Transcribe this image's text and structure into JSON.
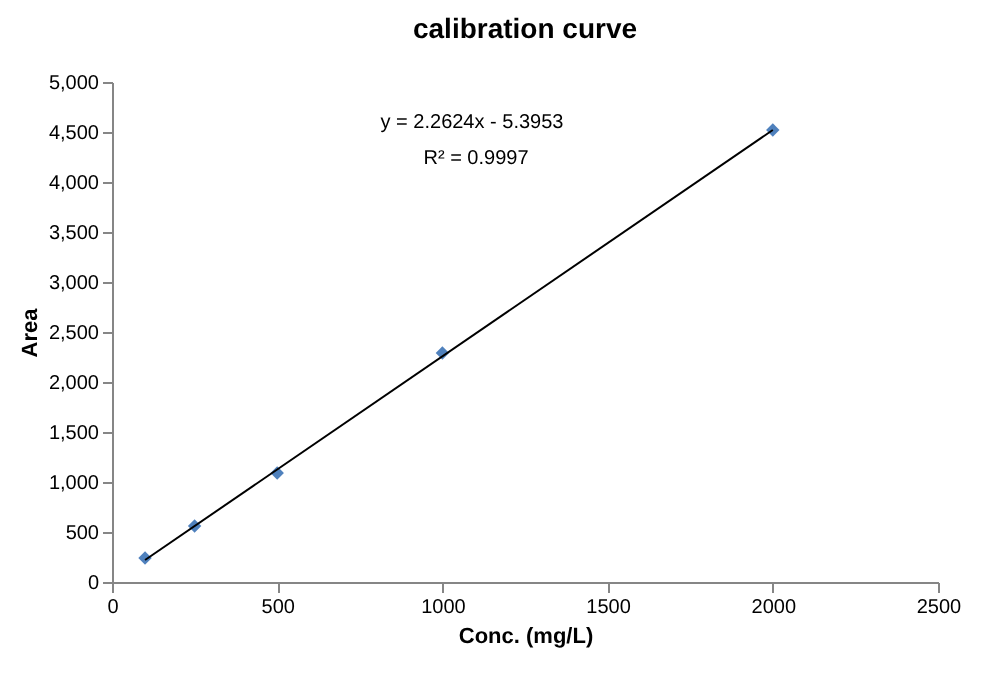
{
  "chart_data": {
    "type": "scatter",
    "title": "calibration curve",
    "xlabel": "Conc.  (mg/L)",
    "ylabel": "Area",
    "annotations": [
      "y = 2.2624x  - 5.3953",
      "R² = 0.9997"
    ],
    "series": [
      {
        "color": "#4f81bd",
        "x": [
          100,
          250,
          500,
          1000,
          2000
        ],
        "values": [
          240,
          560,
          1090,
          2290,
          4520
        ],
        "marker": "diamond"
      },
      {
        "type": "line",
        "color": "#000000",
        "x": [
          100,
          2000
        ],
        "values": [
          220,
          4520
        ],
        "marker": "none"
      }
    ],
    "xlim": [
      0,
      2500
    ],
    "xticks": [
      0,
      500,
      1000,
      1500,
      2000,
      2500
    ],
    "ylim": [
      0,
      5000
    ],
    "yticks": [
      0,
      500,
      {
        "value": 1000,
        "label": "1,000"
      },
      {
        "value": 1500,
        "label": "1,500"
      },
      {
        "value": 2000,
        "label": "2,000"
      },
      {
        "value": 2500,
        "label": "2,500"
      },
      {
        "value": 3000,
        "label": "3,000"
      },
      {
        "value": 3500,
        "label": "3,500"
      },
      {
        "value": 4000,
        "label": "4,000"
      },
      {
        "value": 4500,
        "label": "4,500"
      },
      {
        "value": 5000,
        "label": "5,000"
      }
    ],
    "grid": false
  }
}
